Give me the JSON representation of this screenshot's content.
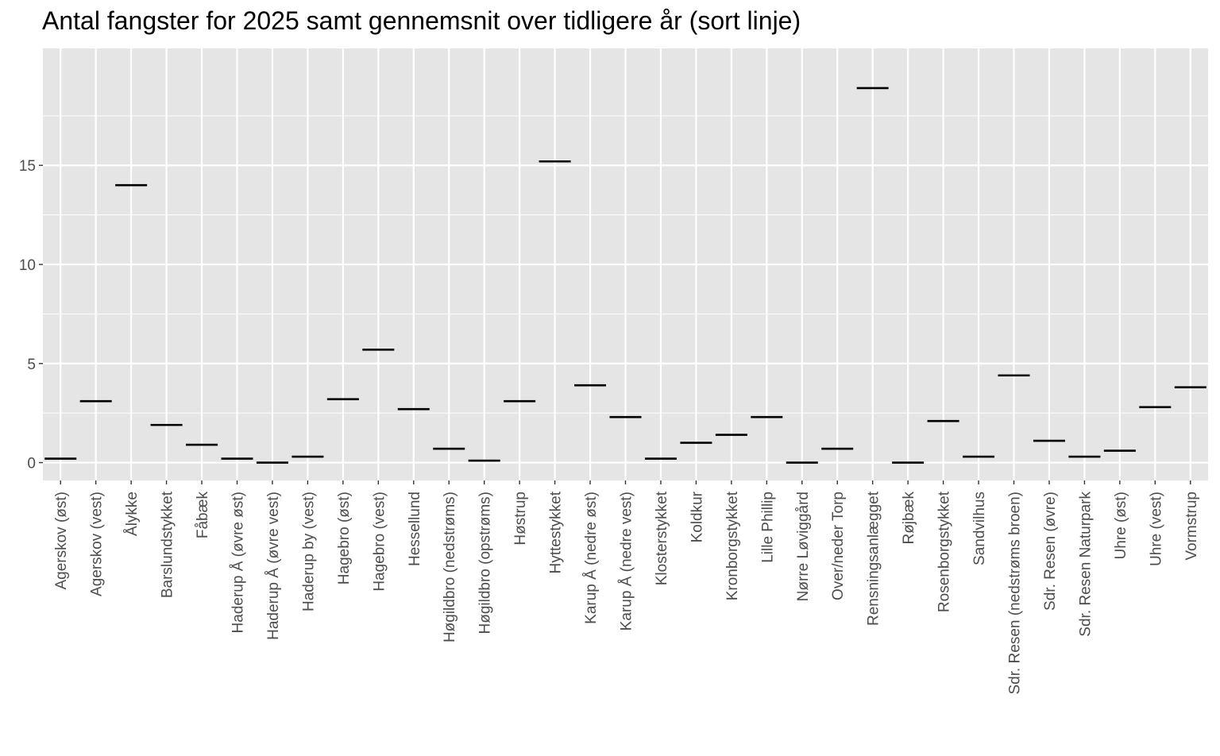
{
  "chart_data": {
    "type": "errorbar-mean",
    "title": "Antal fangster for 2025 samt gennemsnit over tidligere år (sort linje)",
    "xlabel": "",
    "ylabel": "",
    "ylim": [
      -0.9,
      20.9
    ],
    "yticks": [
      0,
      5,
      10,
      15
    ],
    "grid": true,
    "legend": "none",
    "colors": {
      "panel": "#e5e5e5",
      "grid": "#ffffff",
      "mean_line": "#000000",
      "tick_text": "#4d4d4d"
    },
    "categories": [
      "Agerskov (øst)",
      "Agerskov (vest)",
      "Ålykke",
      "Barslundstykket",
      "Fåbæk",
      "Haderup Å (øvre øst)",
      "Haderup Å (øvre vest)",
      "Haderup by (vest)",
      "Hagebro (øst)",
      "Hagebro (vest)",
      "Hessellund",
      "Høgildbro (nedstrøms)",
      "Høgildbro (opstrøms)",
      "Høstrup",
      "Hyttestykket",
      "Karup Å (nedre øst)",
      "Karup Å (nedre vest)",
      "Klosterstykket",
      "Koldkur",
      "Kronborgstykket",
      "Lille Phillip",
      "Nørre Løviggård",
      "Over/neder Torp",
      "Rensningsanlægget",
      "Røjbæk",
      "Rosenborgstykket",
      "Sandvilhus",
      "Sdr. Resen (nedstrøms broen)",
      "Sdr. Resen (øvre)",
      "Sdr. Resen Naturpark",
      "Uhre (øst)",
      "Uhre (vest)",
      "Vormstrup"
    ],
    "series": [
      {
        "values": [
          0.2,
          3.1,
          14.0,
          1.9,
          0.9,
          0.2,
          0.0,
          0.3,
          3.2,
          5.7,
          2.7,
          0.7,
          0.1,
          3.1,
          15.2,
          3.9,
          2.3,
          0.2,
          1.0,
          1.4,
          2.3,
          0.0,
          0.7,
          18.9,
          0.0,
          2.1,
          0.3,
          4.4,
          1.1,
          0.3,
          0.6,
          2.8,
          3.8
        ]
      }
    ]
  }
}
